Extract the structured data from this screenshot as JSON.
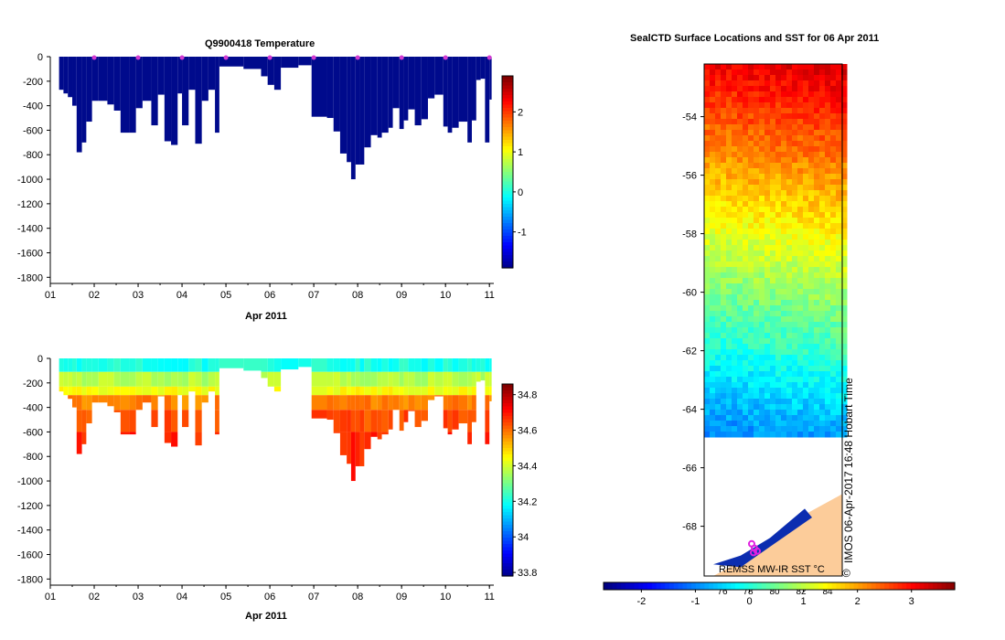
{
  "chart_data": [
    {
      "type": "heatmap",
      "title": "Q9900418  Temperature",
      "xlabel": "Apr 2011",
      "ylabel": "",
      "x_ticks": [
        "01",
        "02",
        "03",
        "04",
        "05",
        "06",
        "07",
        "08",
        "09",
        "10",
        "11"
      ],
      "y_ticks": [
        "0",
        "-200",
        "-400",
        "-600",
        "-800",
        "-1000",
        "-1200",
        "-1400",
        "-1600",
        "-1800"
      ],
      "ylim": [
        -1850,
        0
      ],
      "xlim": [
        1,
        11.1
      ],
      "colorbar": {
        "min": -1.9,
        "max": 2.9,
        "ticks": [
          "2",
          "1",
          "0",
          "-1"
        ],
        "tick_values": [
          2,
          1,
          0,
          -1
        ]
      },
      "profile_markers_day": [
        2,
        3,
        4,
        5,
        6,
        7,
        8,
        9,
        10,
        11
      ],
      "profile_max_depth": [
        [
          1.2,
          -270
        ],
        [
          1.3,
          -300
        ],
        [
          1.4,
          -330
        ],
        [
          1.5,
          -400
        ],
        [
          1.6,
          -780
        ],
        [
          1.72,
          -700
        ],
        [
          1.82,
          -530
        ],
        [
          1.95,
          -360
        ],
        [
          2.1,
          -360
        ],
        [
          2.3,
          -390
        ],
        [
          2.45,
          -440
        ],
        [
          2.6,
          -620
        ],
        [
          2.8,
          -620
        ],
        [
          2.95,
          -420
        ],
        [
          3.1,
          -360
        ],
        [
          3.3,
          -560
        ],
        [
          3.45,
          -310
        ],
        [
          3.6,
          -690
        ],
        [
          3.75,
          -720
        ],
        [
          3.9,
          -300
        ],
        [
          4.0,
          -560
        ],
        [
          4.15,
          -270
        ],
        [
          4.3,
          -710
        ],
        [
          4.45,
          -360
        ],
        [
          4.6,
          -270
        ],
        [
          4.75,
          -620
        ],
        [
          4.85,
          -80
        ],
        [
          5.4,
          -100
        ],
        [
          5.8,
          -160
        ],
        [
          5.95,
          -230
        ],
        [
          6.1,
          -270
        ],
        [
          6.25,
          -90
        ],
        [
          6.65,
          -70
        ],
        [
          6.95,
          -490
        ],
        [
          7.3,
          -500
        ],
        [
          7.45,
          -610
        ],
        [
          7.6,
          -790
        ],
        [
          7.75,
          -860
        ],
        [
          7.85,
          -1000
        ],
        [
          7.95,
          -880
        ],
        [
          8.05,
          -880
        ],
        [
          8.15,
          -740
        ],
        [
          8.3,
          -640
        ],
        [
          8.45,
          -660
        ],
        [
          8.55,
          -620
        ],
        [
          8.7,
          -580
        ],
        [
          8.8,
          -420
        ],
        [
          8.95,
          -590
        ],
        [
          9.05,
          -520
        ],
        [
          9.15,
          -430
        ],
        [
          9.3,
          -560
        ],
        [
          9.45,
          -510
        ],
        [
          9.6,
          -340
        ],
        [
          9.75,
          -310
        ],
        [
          9.95,
          -570
        ],
        [
          10.05,
          -620
        ],
        [
          10.15,
          -580
        ],
        [
          10.3,
          -530
        ],
        [
          10.5,
          -700
        ],
        [
          10.6,
          -520
        ],
        [
          10.7,
          -190
        ],
        [
          10.8,
          -180
        ],
        [
          10.9,
          -700
        ],
        [
          11.0,
          -350
        ]
      ]
    },
    {
      "type": "heatmap",
      "title": "",
      "xlabel": "Apr 2011",
      "ylabel": "",
      "x_ticks": [
        "01",
        "02",
        "03",
        "04",
        "05",
        "06",
        "07",
        "08",
        "09",
        "10",
        "11"
      ],
      "y_ticks": [
        "0",
        "-200",
        "-400",
        "-600",
        "-800",
        "-1000",
        "-1200",
        "-1400",
        "-1600",
        "-1800"
      ],
      "ylim": [
        -1850,
        0
      ],
      "xlim": [
        1,
        11.1
      ],
      "colorbar": {
        "min": 33.78,
        "max": 34.86,
        "ticks": [
          "34.8",
          "34.6",
          "34.4",
          "34.2",
          "34",
          "33.8"
        ],
        "tick_values": [
          34.8,
          34.6,
          34.4,
          34.2,
          34,
          33.8
        ]
      }
    },
    {
      "type": "heatmap",
      "title": "SealCTD Surface Locations and SST for 06 Apr 2011",
      "xlabel": "",
      "ylabel": "",
      "y_ticks": [
        "-54",
        "-56",
        "-58",
        "-60",
        "-62",
        "-64",
        "-66",
        "-68"
      ],
      "ylim": [
        -69.7,
        -52.2
      ],
      "annotation_rotated": "IMOS 06-Apr-2017 16:48 Hobart Time",
      "copyright_symbol": "©",
      "inner_label": "REMSS MW-IR SST °C",
      "inner_ticks": [
        "76",
        "78",
        "80",
        "82",
        "84"
      ],
      "colorbar": {
        "min": -2.7,
        "max": 3.8,
        "ticks": [
          "-2",
          "-1",
          "0",
          "1",
          "2",
          "3"
        ],
        "tick_values": [
          -2,
          -1,
          0,
          1,
          2,
          3
        ]
      }
    }
  ]
}
